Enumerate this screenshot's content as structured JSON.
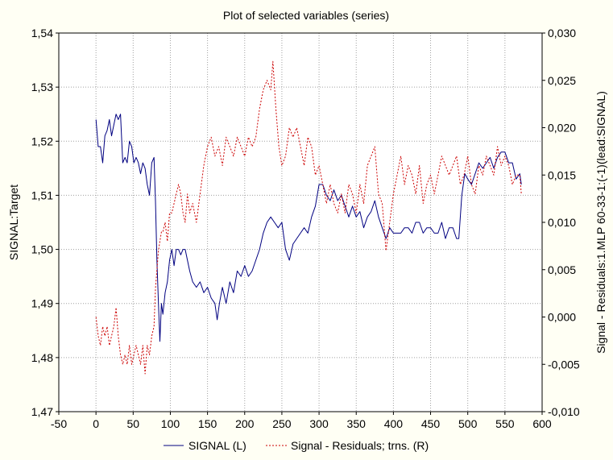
{
  "chart_data": {
    "type": "line",
    "title": "Plot of selected variables (series)",
    "xlabel": "",
    "ylabel_left": "SIGNAL:Target",
    "ylabel_right": "Signal - Residuals:1.MLP 60-33-1:(-1)(lead:SIGNAL)",
    "xlim": [
      -50,
      600
    ],
    "ylim_left": [
      1.47,
      1.54
    ],
    "ylim_right": [
      -0.01,
      0.03
    ],
    "x_ticks": [
      "-50",
      "0",
      "50",
      "100",
      "150",
      "200",
      "250",
      "300",
      "350",
      "400",
      "450",
      "500",
      "550",
      "600"
    ],
    "y_left_ticks": [
      "1,47",
      "1,48",
      "1,49",
      "1,50",
      "1,51",
      "1,52",
      "1,53",
      "1,54"
    ],
    "y_right_ticks": [
      "-0,010",
      "-0,005",
      "0,000",
      "0,005",
      "0,010",
      "0,015",
      "0,020",
      "0,025",
      "0,030"
    ],
    "grid": true,
    "legend_position": "bottom",
    "legend": [
      {
        "label": "SIGNAL (L)",
        "color": "#000080",
        "style": "solid"
      },
      {
        "label": "Signal - Residuals; trns. (R)",
        "color": "#cc0000",
        "style": "dashed"
      }
    ],
    "series": [
      {
        "name": "SIGNAL (L)",
        "axis": "left",
        "color": "#000080",
        "x": [
          0,
          3,
          6,
          9,
          12,
          15,
          18,
          21,
          24,
          27,
          30,
          33,
          36,
          39,
          42,
          45,
          48,
          51,
          54,
          57,
          60,
          63,
          66,
          69,
          72,
          75,
          78,
          80,
          82,
          84,
          86,
          88,
          90,
          93,
          96,
          99,
          102,
          105,
          108,
          111,
          114,
          117,
          120,
          123,
          126,
          130,
          135,
          140,
          145,
          150,
          155,
          160,
          163,
          166,
          170,
          175,
          180,
          185,
          190,
          195,
          200,
          205,
          210,
          215,
          220,
          225,
          230,
          235,
          240,
          245,
          250,
          255,
          260,
          265,
          270,
          275,
          280,
          285,
          290,
          295,
          300,
          305,
          310,
          315,
          320,
          325,
          330,
          335,
          340,
          345,
          350,
          355,
          360,
          365,
          370,
          375,
          380,
          385,
          390,
          395,
          400,
          405,
          410,
          415,
          420,
          425,
          430,
          435,
          440,
          445,
          450,
          455,
          460,
          465,
          470,
          475,
          480,
          485,
          488,
          492,
          496,
          500,
          505,
          510,
          515,
          520,
          525,
          530,
          535,
          540,
          545,
          550,
          555,
          560,
          565,
          570,
          572
        ],
        "y": [
          1.524,
          1.519,
          1.519,
          1.516,
          1.521,
          1.522,
          1.524,
          1.521,
          1.523,
          1.525,
          1.524,
          1.525,
          1.516,
          1.517,
          1.516,
          1.52,
          1.519,
          1.516,
          1.517,
          1.516,
          1.514,
          1.516,
          1.515,
          1.512,
          1.51,
          1.516,
          1.517,
          1.509,
          1.498,
          1.49,
          1.483,
          1.49,
          1.488,
          1.492,
          1.494,
          1.498,
          1.5,
          1.497,
          1.5,
          1.5,
          1.499,
          1.5,
          1.5,
          1.498,
          1.496,
          1.494,
          1.493,
          1.494,
          1.492,
          1.493,
          1.491,
          1.49,
          1.487,
          1.49,
          1.493,
          1.49,
          1.494,
          1.492,
          1.496,
          1.495,
          1.497,
          1.495,
          1.496,
          1.498,
          1.5,
          1.503,
          1.505,
          1.506,
          1.505,
          1.504,
          1.505,
          1.5,
          1.498,
          1.501,
          1.502,
          1.503,
          1.504,
          1.503,
          1.506,
          1.508,
          1.512,
          1.512,
          1.51,
          1.509,
          1.511,
          1.509,
          1.51,
          1.508,
          1.506,
          1.508,
          1.506,
          1.507,
          1.504,
          1.506,
          1.507,
          1.509,
          1.506,
          1.504,
          1.502,
          1.504,
          1.503,
          1.503,
          1.503,
          1.504,
          1.504,
          1.503,
          1.505,
          1.505,
          1.503,
          1.504,
          1.504,
          1.503,
          1.503,
          1.505,
          1.502,
          1.504,
          1.504,
          1.502,
          1.502,
          1.51,
          1.514,
          1.513,
          1.512,
          1.514,
          1.516,
          1.515,
          1.516,
          1.517,
          1.515,
          1.517,
          1.518,
          1.518,
          1.516,
          1.516,
          1.513,
          1.514,
          1.512
        ]
      },
      {
        "name": "Signal - Residuals; trns. (R)",
        "axis": "right",
        "color": "#cc0000",
        "x": [
          0,
          3,
          6,
          9,
          12,
          15,
          18,
          21,
          24,
          27,
          30,
          33,
          36,
          39,
          42,
          45,
          48,
          51,
          54,
          57,
          60,
          63,
          66,
          69,
          72,
          75,
          78,
          80,
          82,
          84,
          86,
          88,
          90,
          93,
          96,
          99,
          102,
          105,
          108,
          111,
          114,
          117,
          120,
          123,
          126,
          130,
          135,
          140,
          145,
          150,
          155,
          160,
          165,
          170,
          175,
          180,
          185,
          190,
          195,
          200,
          205,
          210,
          215,
          220,
          225,
          230,
          235,
          238,
          242,
          246,
          250,
          255,
          260,
          265,
          270,
          275,
          280,
          285,
          290,
          295,
          300,
          305,
          310,
          315,
          320,
          325,
          330,
          335,
          340,
          345,
          350,
          355,
          360,
          365,
          370,
          375,
          380,
          385,
          390,
          395,
          400,
          405,
          410,
          415,
          420,
          425,
          430,
          435,
          440,
          445,
          450,
          455,
          460,
          465,
          470,
          475,
          480,
          485,
          490,
          495,
          500,
          505,
          510,
          515,
          520,
          525,
          530,
          535,
          540,
          545,
          550,
          555,
          560,
          565,
          570,
          572
        ],
        "y": [
          0.0,
          -0.002,
          -0.003,
          -0.001,
          -0.002,
          -0.001,
          -0.003,
          -0.002,
          -0.001,
          0.001,
          -0.002,
          -0.004,
          -0.005,
          -0.004,
          -0.005,
          -0.003,
          -0.005,
          -0.004,
          -0.003,
          -0.004,
          -0.005,
          -0.003,
          -0.006,
          -0.003,
          -0.004,
          -0.002,
          -0.001,
          0.003,
          0.005,
          0.007,
          0.008,
          0.009,
          0.009,
          0.01,
          0.008,
          0.011,
          0.011,
          0.012,
          0.013,
          0.014,
          0.013,
          0.011,
          0.01,
          0.013,
          0.011,
          0.012,
          0.01,
          0.013,
          0.016,
          0.018,
          0.019,
          0.017,
          0.018,
          0.016,
          0.019,
          0.018,
          0.017,
          0.019,
          0.018,
          0.017,
          0.019,
          0.018,
          0.019,
          0.022,
          0.024,
          0.025,
          0.024,
          0.027,
          0.022,
          0.018,
          0.016,
          0.017,
          0.02,
          0.019,
          0.02,
          0.018,
          0.016,
          0.019,
          0.018,
          0.015,
          0.016,
          0.014,
          0.012,
          0.014,
          0.012,
          0.011,
          0.013,
          0.011,
          0.014,
          0.013,
          0.011,
          0.014,
          0.012,
          0.016,
          0.017,
          0.018,
          0.013,
          0.012,
          0.007,
          0.01,
          0.013,
          0.015,
          0.017,
          0.014,
          0.016,
          0.015,
          0.013,
          0.016,
          0.012,
          0.014,
          0.015,
          0.013,
          0.015,
          0.017,
          0.016,
          0.015,
          0.016,
          0.017,
          0.014,
          0.015,
          0.017,
          0.014,
          0.013,
          0.016,
          0.015,
          0.017,
          0.016,
          0.015,
          0.018,
          0.016,
          0.017,
          0.016,
          0.014,
          0.015,
          0.015,
          0.013
        ]
      }
    ]
  }
}
